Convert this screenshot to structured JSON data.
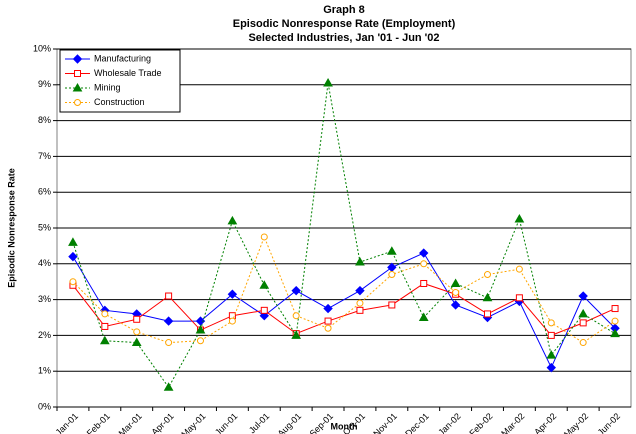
{
  "chart_data": {
    "type": "line",
    "title": "Graph 8",
    "subtitle": [
      "Episodic Nonresponse Rate (Employment)",
      "Selected Industries, Jan '01 - Jun '02"
    ],
    "x_label": "Month",
    "y_label": "Episodic Nonresponse Rate",
    "categories": [
      "Jan-01",
      "Feb-01",
      "Mar-01",
      "Apr-01",
      "May-01",
      "Jun-01",
      "Jul-01",
      "Aug-01",
      "Sep-01",
      "Oct-01",
      "Nov-01",
      "Dec-01",
      "Jan-02",
      "Feb-02",
      "Mar-02",
      "Apr-02",
      "May-02",
      "Jun-02"
    ],
    "ylim": [
      0,
      10
    ],
    "yticks": [
      {
        "value": 0,
        "label": "0%"
      },
      {
        "value": 1,
        "label": "1%"
      },
      {
        "value": 2,
        "label": "2%"
      },
      {
        "value": 3,
        "label": "3%"
      },
      {
        "value": 4,
        "label": "4%"
      },
      {
        "value": 5,
        "label": "5%"
      },
      {
        "value": 6,
        "label": "6%"
      },
      {
        "value": 7,
        "label": "7%"
      },
      {
        "value": 8,
        "label": "8%"
      },
      {
        "value": 9,
        "label": "9%"
      },
      {
        "value": 10,
        "label": "10%"
      }
    ],
    "grid": true,
    "legend": "top-left",
    "series": [
      {
        "name": "Manufacturing",
        "color": "#0000ff",
        "marker": "diamond",
        "dash": "solid",
        "values": [
          4.2,
          2.7,
          2.6,
          2.4,
          2.4,
          3.15,
          2.55,
          3.25,
          2.75,
          3.25,
          3.9,
          4.3,
          2.85,
          2.5,
          2.95,
          1.1,
          3.1,
          2.2
        ]
      },
      {
        "name": "Wholesale Trade",
        "color": "#ff0000",
        "marker": "square",
        "dash": "solid",
        "values": [
          3.4,
          2.25,
          2.45,
          3.1,
          2.15,
          2.55,
          2.7,
          2.05,
          2.4,
          2.7,
          2.85,
          3.45,
          3.15,
          2.6,
          3.05,
          2.0,
          2.35,
          2.75
        ]
      },
      {
        "name": "Mining",
        "color": "#008000",
        "marker": "triangle",
        "dash": "dotted",
        "values": [
          4.6,
          1.85,
          1.8,
          0.55,
          2.15,
          5.2,
          3.4,
          2.0,
          9.05,
          4.05,
          4.35,
          2.5,
          3.45,
          3.05,
          5.25,
          1.45,
          2.6,
          2.05
        ]
      },
      {
        "name": "Construction",
        "color": "#ffa500",
        "marker": "circle",
        "dash": "dotted",
        "values": [
          3.5,
          2.6,
          2.1,
          1.8,
          1.85,
          2.4,
          4.75,
          2.55,
          2.2,
          2.9,
          3.7,
          4.0,
          3.2,
          3.7,
          3.85,
          2.35,
          1.8,
          2.4
        ]
      }
    ]
  }
}
